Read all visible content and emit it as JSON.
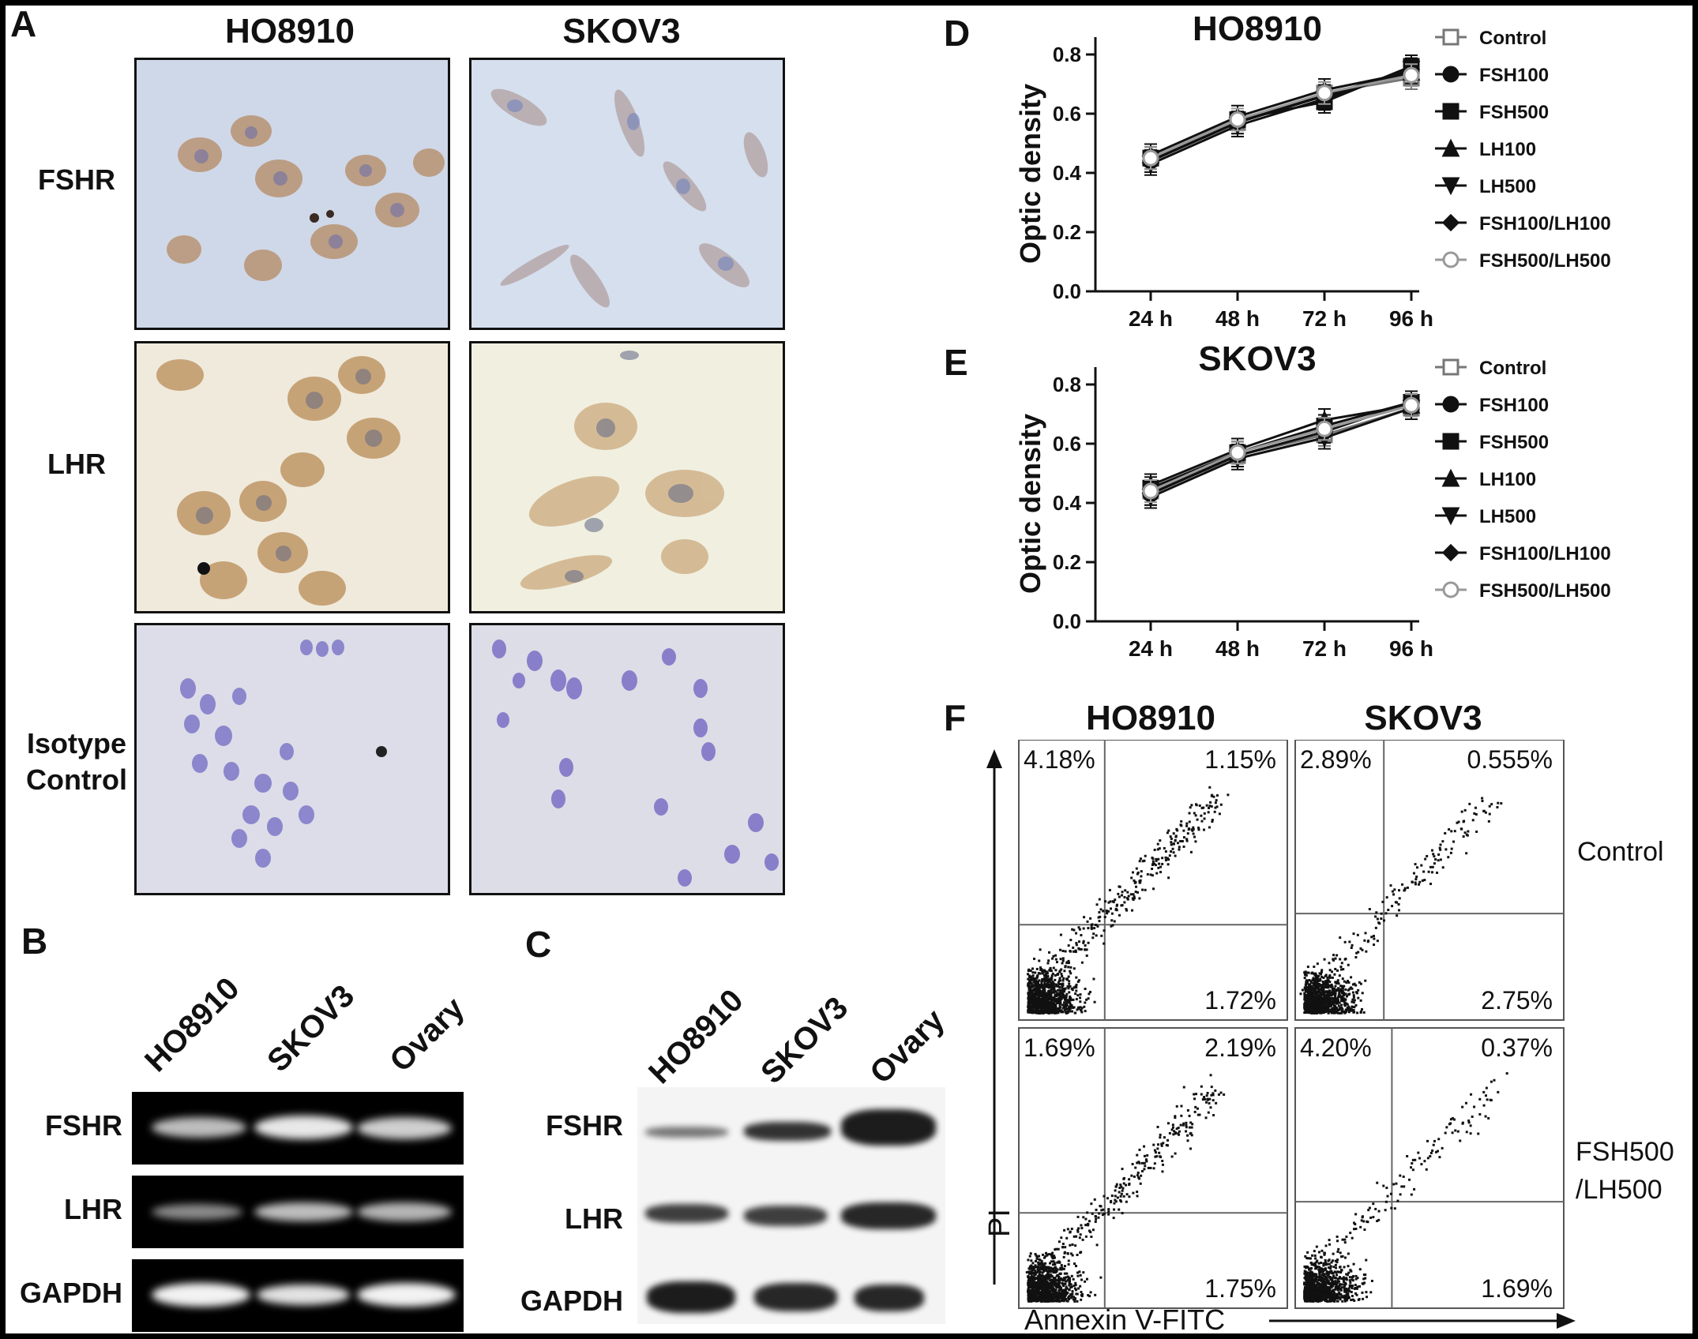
{
  "panels": {
    "A": "A",
    "B": "B",
    "C": "C",
    "D": "D",
    "E": "E",
    "F": "F"
  },
  "panelA": {
    "columns": [
      "HO8910",
      "SKOV3"
    ],
    "rows": [
      "FSHR",
      "LHR",
      "Isotype Control"
    ]
  },
  "panelB": {
    "lanes": [
      "HO8910",
      "SKOV3",
      "Ovary"
    ],
    "rows": [
      "FSHR",
      "LHR",
      "GAPDH"
    ]
  },
  "panelC": {
    "lanes": [
      "HO8910",
      "SKOV3",
      "Ovary"
    ],
    "rows": [
      "FSHR",
      "LHR",
      "GAPDH"
    ]
  },
  "panelF": {
    "columns": [
      "HO8910",
      "SKOV3"
    ],
    "rows": [
      "Control",
      "FSH500\n/LH500"
    ],
    "xlabel": "Annexin V-FITC",
    "ylabel": "PI",
    "quadrants": [
      {
        "ul": "4.18%",
        "ur": "1.15%",
        "lr": "1.72%"
      },
      {
        "ul": "2.89%",
        "ur": "0.555%",
        "lr": "2.75%"
      },
      {
        "ul": "1.69%",
        "ur": "2.19%",
        "lr": "1.75%"
      },
      {
        "ul": "4.20%",
        "ur": "0.37%",
        "lr": "1.69%"
      }
    ]
  },
  "chart_data": [
    {
      "type": "line",
      "title": "HO8910",
      "xlabel": "",
      "ylabel": "Optic density",
      "categories": [
        "24 h",
        "48 h",
        "72 h",
        "96 h"
      ],
      "yticks": [
        "0.0",
        "0.2",
        "0.4",
        "0.6",
        "0.8"
      ],
      "ylim": [
        0,
        0.8
      ],
      "legend_position": "right",
      "series": [
        {
          "name": "Control",
          "marker": "open-square",
          "color": "#777777",
          "values": [
            0.45,
            0.57,
            0.67,
            0.72
          ]
        },
        {
          "name": "FSH100",
          "marker": "circle",
          "color": "#111111",
          "values": [
            0.44,
            0.58,
            0.66,
            0.74
          ]
        },
        {
          "name": "FSH500",
          "marker": "square",
          "color": "#111111",
          "values": [
            0.45,
            0.58,
            0.64,
            0.76
          ]
        },
        {
          "name": "LH100",
          "marker": "triangle-up",
          "color": "#111111",
          "values": [
            0.46,
            0.59,
            0.68,
            0.74
          ]
        },
        {
          "name": "LH500",
          "marker": "triangle-down",
          "color": "#111111",
          "values": [
            0.43,
            0.56,
            0.65,
            0.75
          ]
        },
        {
          "name": "FSH100/LH100",
          "marker": "diamond",
          "color": "#111111",
          "values": [
            0.44,
            0.57,
            0.66,
            0.75
          ]
        },
        {
          "name": "FSH500/LH500",
          "marker": "open-circle",
          "color": "#999999",
          "values": [
            0.45,
            0.58,
            0.67,
            0.73
          ]
        }
      ]
    },
    {
      "type": "line",
      "title": "SKOV3",
      "xlabel": "",
      "ylabel": "Optic density",
      "categories": [
        "24 h",
        "48 h",
        "72 h",
        "96 h"
      ],
      "yticks": [
        "0.0",
        "0.2",
        "0.4",
        "0.6",
        "0.8"
      ],
      "ylim": [
        0,
        0.8
      ],
      "legend_position": "right",
      "series": [
        {
          "name": "Control",
          "marker": "open-square",
          "color": "#777777",
          "values": [
            0.44,
            0.56,
            0.63,
            0.72
          ]
        },
        {
          "name": "FSH100",
          "marker": "circle",
          "color": "#111111",
          "values": [
            0.43,
            0.57,
            0.65,
            0.73
          ]
        },
        {
          "name": "FSH500",
          "marker": "square",
          "color": "#111111",
          "values": [
            0.45,
            0.57,
            0.66,
            0.74
          ]
        },
        {
          "name": "LH100",
          "marker": "triangle-up",
          "color": "#111111",
          "values": [
            0.46,
            0.58,
            0.68,
            0.73
          ]
        },
        {
          "name": "LH500",
          "marker": "triangle-down",
          "color": "#111111",
          "values": [
            0.42,
            0.55,
            0.62,
            0.72
          ]
        },
        {
          "name": "FSH100/LH100",
          "marker": "diamond",
          "color": "#111111",
          "values": [
            0.43,
            0.56,
            0.64,
            0.74
          ]
        },
        {
          "name": "FSH500/LH500",
          "marker": "open-circle",
          "color": "#999999",
          "values": [
            0.44,
            0.57,
            0.65,
            0.73
          ]
        }
      ]
    }
  ]
}
